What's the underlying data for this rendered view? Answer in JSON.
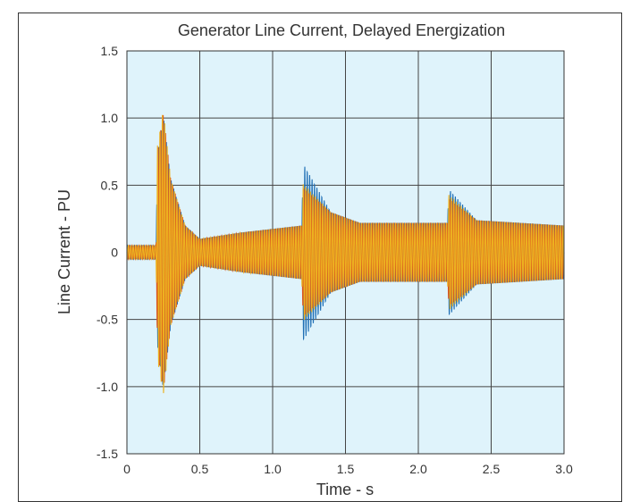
{
  "chart_data": {
    "type": "line",
    "title": "Generator Line Current, Delayed Energization",
    "xlabel": "Time - s",
    "ylabel": "Line Current - PU",
    "xlim": [
      0,
      3.0
    ],
    "ylim": [
      -1.5,
      1.5
    ],
    "x_ticks": [
      0,
      0.5,
      1.0,
      1.5,
      2.0,
      2.5,
      3.0
    ],
    "x_tick_labels": [
      "0",
      "0.5",
      "1.0",
      "1.5",
      "2.0",
      "2.5",
      "3.0"
    ],
    "y_ticks": [
      1.5,
      1.0,
      0.5,
      0,
      -0.5,
      -1.0,
      -1.5
    ],
    "y_tick_labels": [
      "1.5",
      "1.0",
      "0.5",
      "0",
      "-0.5",
      "-1.0",
      "-1.5"
    ],
    "grid": true,
    "legend": "none",
    "plot_background": "#dff3fb",
    "series": [
      {
        "color": "#1f6fb5",
        "phase_offset_deg": 0,
        "envelope": [
          {
            "x": 0.0,
            "amp": 0.05
          },
          {
            "x": 0.2,
            "amp": 0.05
          },
          {
            "x": 0.21,
            "amp": 0.7
          },
          {
            "x": 0.25,
            "amp": 1.02
          },
          {
            "x": 0.3,
            "amp": 0.55
          },
          {
            "x": 0.4,
            "amp": 0.2
          },
          {
            "x": 0.5,
            "amp": 0.1
          },
          {
            "x": 0.8,
            "amp": 0.15
          },
          {
            "x": 1.2,
            "amp": 0.2
          },
          {
            "x": 1.21,
            "amp": 0.66
          },
          {
            "x": 1.4,
            "amp": 0.3
          },
          {
            "x": 1.6,
            "amp": 0.22
          },
          {
            "x": 2.2,
            "amp": 0.22
          },
          {
            "x": 2.21,
            "amp": 0.47
          },
          {
            "x": 2.4,
            "amp": 0.24
          },
          {
            "x": 3.0,
            "amp": 0.2
          }
        ]
      },
      {
        "color": "#d9541e",
        "phase_offset_deg": 120,
        "envelope": [
          {
            "x": 0.0,
            "amp": 0.05
          },
          {
            "x": 0.2,
            "amp": 0.05
          },
          {
            "x": 0.21,
            "amp": 0.75
          },
          {
            "x": 0.25,
            "amp": 1.04
          },
          {
            "x": 0.3,
            "amp": 0.55
          },
          {
            "x": 0.4,
            "amp": 0.2
          },
          {
            "x": 0.5,
            "amp": 0.1
          },
          {
            "x": 0.8,
            "amp": 0.15
          },
          {
            "x": 1.2,
            "amp": 0.2
          },
          {
            "x": 1.21,
            "amp": 0.48
          },
          {
            "x": 1.4,
            "amp": 0.3
          },
          {
            "x": 1.6,
            "amp": 0.22
          },
          {
            "x": 2.2,
            "amp": 0.22
          },
          {
            "x": 2.21,
            "amp": 0.4
          },
          {
            "x": 2.4,
            "amp": 0.24
          },
          {
            "x": 3.0,
            "amp": 0.2
          }
        ]
      },
      {
        "color": "#edb120",
        "phase_offset_deg": 240,
        "envelope": [
          {
            "x": 0.0,
            "amp": 0.05
          },
          {
            "x": 0.2,
            "amp": 0.05
          },
          {
            "x": 0.21,
            "amp": 0.8
          },
          {
            "x": 0.25,
            "amp": 1.07
          },
          {
            "x": 0.3,
            "amp": 0.55
          },
          {
            "x": 0.4,
            "amp": 0.2
          },
          {
            "x": 0.5,
            "amp": 0.1
          },
          {
            "x": 0.8,
            "amp": 0.15
          },
          {
            "x": 1.2,
            "amp": 0.2
          },
          {
            "x": 1.21,
            "amp": 0.51
          },
          {
            "x": 1.4,
            "amp": 0.3
          },
          {
            "x": 1.6,
            "amp": 0.22
          },
          {
            "x": 2.2,
            "amp": 0.22
          },
          {
            "x": 2.21,
            "amp": 0.43
          },
          {
            "x": 2.4,
            "amp": 0.24
          },
          {
            "x": 3.0,
            "amp": 0.2
          }
        ]
      }
    ],
    "frequency_hz": 60
  }
}
